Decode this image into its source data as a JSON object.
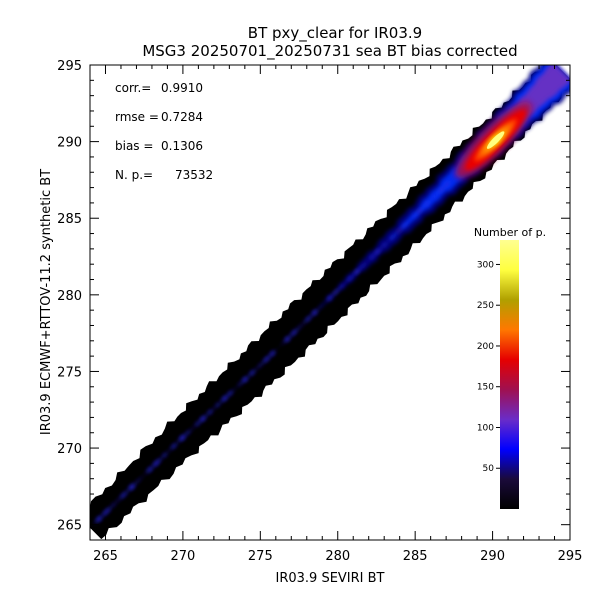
{
  "chart_data": {
    "type": "heatmap",
    "title": "BT pxy_clear for IR03.9",
    "subtitle": "MSG3 20250701_20250731 sea BT bias corrected",
    "xlabel": "IR03.9 SEVIRI BT",
    "ylabel": "IR03.9 ECMWF+RTTOV-11.2 synthetic BT",
    "xlim": [
      264,
      295
    ],
    "ylim": [
      264,
      295
    ],
    "xticks": [
      265,
      270,
      275,
      280,
      285,
      290,
      295
    ],
    "yticks": [
      265,
      270,
      275,
      280,
      285,
      290,
      295
    ],
    "grid": false,
    "stats": [
      {
        "label": "corr.=",
        "value": "0.9910"
      },
      {
        "label": "rmse =",
        "value": "0.7284"
      },
      {
        "label": "bias =",
        "value": "0.1306"
      },
      {
        "label": "N. p.=",
        "value": "73532"
      }
    ],
    "colorbar": {
      "title": "Number of p.",
      "range": [
        0,
        330
      ],
      "ticks": [
        50,
        100,
        150,
        200,
        250,
        300
      ],
      "colors": [
        "#000000",
        "#1a0a3a",
        "#0000ff",
        "#6a2cc8",
        "#a01050",
        "#e60000",
        "#ff7800",
        "#b0a000",
        "#ffff40",
        "#ffff90"
      ]
    },
    "density": {
      "center_line": [
        [
          264,
          264.8
        ],
        [
          270,
          270.7
        ],
        [
          275,
          275.4
        ],
        [
          280,
          280.3
        ],
        [
          285,
          285.2
        ],
        [
          290,
          290.1
        ],
        [
          294.5,
          294.6
        ]
      ],
      "core": {
        "x": 290.2,
        "y": 290.1,
        "max_count": 320
      }
    }
  }
}
